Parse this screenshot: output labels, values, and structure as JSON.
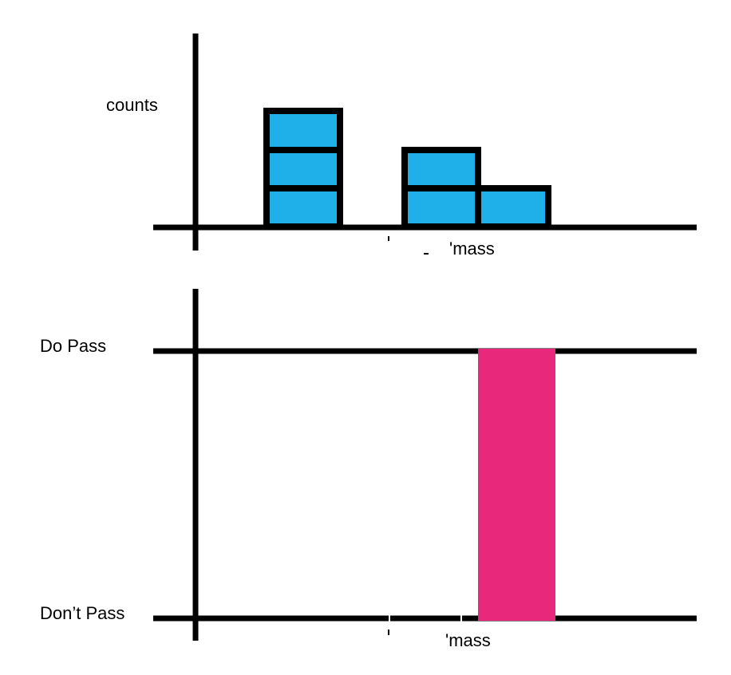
{
  "top_panel": {
    "y_label": "counts",
    "x_label": "'mass",
    "bar_fill": "#1fb0ea",
    "stroke": "#000000",
    "stacks": [
      {
        "bin": 1,
        "blocks": 3
      },
      {
        "bin": 2,
        "blocks": 0
      },
      {
        "bin": 3,
        "blocks": 2
      },
      {
        "bin": 4,
        "blocks": 1
      }
    ]
  },
  "bottom_panel": {
    "pass_label": "Do Pass",
    "fail_label": "Don’t Pass",
    "x_label": "'mass",
    "window_fill": "#e8287a",
    "stroke": "#000000"
  }
}
